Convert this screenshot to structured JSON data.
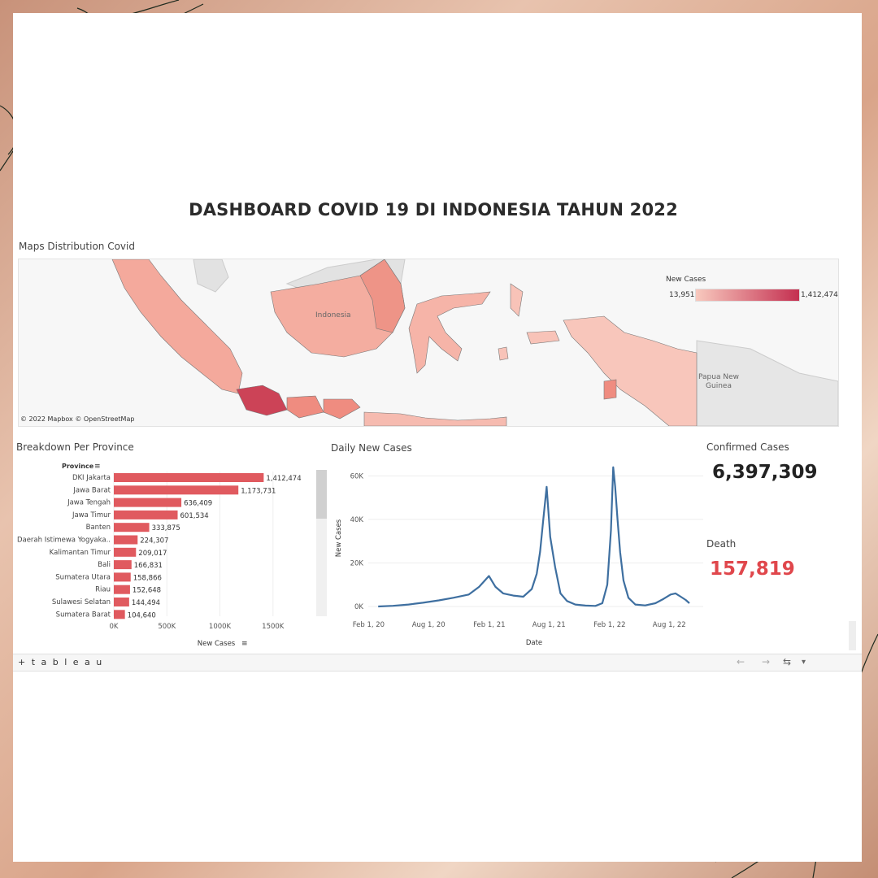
{
  "dashboard": {
    "title": "DASHBOARD COVID 19 DI INDONESIA TAHUN 2022"
  },
  "map": {
    "section_label": "Maps Distribution Covid",
    "legend_title": "New Cases",
    "legend_min": "13,951",
    "legend_max": "1,412,474",
    "attribution": "© 2022 Mapbox  © OpenStreetMap",
    "place_country": "Indonesia",
    "place_png": "Papua New Guinea",
    "colors": {
      "low": "#f8c9be",
      "high": "#c42f50"
    }
  },
  "province_chart": {
    "section_label": "Breakdown Per Province",
    "header_label": "Province",
    "xlabel_text": "New Cases",
    "bar_color": "#e05a5f"
  },
  "daily_chart": {
    "section_label": "Daily New Cases",
    "line_color": "#3e6fa0"
  },
  "kpi": {
    "confirmed_label": "Confirmed Cases",
    "confirmed_value": "6,397,309",
    "death_label": "Death",
    "death_value": "157,819",
    "death_color": "#e0474c"
  },
  "toolbar": {
    "logo": "+ t a b l e a u",
    "back": "←",
    "forward": "→",
    "share": "⇆",
    "more": "▾"
  },
  "chart_data": [
    {
      "type": "bar",
      "orientation": "horizontal",
      "title": "Breakdown Per Province",
      "ylabel": "Province",
      "xlabel": "New Cases",
      "categories": [
        "DKI Jakarta",
        "Jawa Barat",
        "Jawa Tengah",
        "Jawa Timur",
        "Banten",
        "Daerah Istimewa Yogyaka..",
        "Kalimantan Timur",
        "Bali",
        "Sumatera Utara",
        "Riau",
        "Sulawesi Selatan",
        "Sumatera Barat"
      ],
      "value_labels": [
        "1,412,474",
        "1,173,731",
        "636,409",
        "601,534",
        "333,875",
        "224,307",
        "209,017",
        "166,831",
        "158,866",
        "152,648",
        "144,494",
        "104,640"
      ],
      "values": [
        1412474,
        1173731,
        636409,
        601534,
        333875,
        224307,
        209017,
        166831,
        158866,
        152648,
        144494,
        104640
      ],
      "xlim": [
        0,
        1900000
      ],
      "xticks": [
        0,
        500000,
        1000000,
        1500000
      ],
      "xtick_labels": [
        "0K",
        "500K",
        "1000K",
        "1500K"
      ],
      "grid": true
    },
    {
      "type": "line",
      "title": "Daily New Cases",
      "xlabel": "Date",
      "ylabel": "New Cases",
      "x_range": [
        "2020-03-01",
        "2022-10-01"
      ],
      "xtick_labels": [
        "Feb 1, 20",
        "Aug 1, 20",
        "Feb 1, 21",
        "Aug 1, 21",
        "Feb 1, 22",
        "Aug 1, 22"
      ],
      "xtick_dates": [
        "2020-02-01",
        "2020-08-01",
        "2021-02-01",
        "2021-08-01",
        "2022-02-01",
        "2022-08-01"
      ],
      "ylim": [
        0,
        65000
      ],
      "yticks": [
        0,
        20000,
        40000,
        60000
      ],
      "ytick_labels": [
        "0K",
        "20K",
        "40K",
        "60K"
      ],
      "series": [
        {
          "x": [
            "2020-03-01",
            "2020-04-15",
            "2020-06-01",
            "2020-07-15",
            "2020-09-01",
            "2020-10-15",
            "2020-12-01",
            "2021-01-01",
            "2021-01-31",
            "2021-02-20",
            "2021-03-15",
            "2021-04-15",
            "2021-05-15",
            "2021-06-10",
            "2021-06-25",
            "2021-07-05",
            "2021-07-15",
            "2021-07-25",
            "2021-08-05",
            "2021-08-20",
            "2021-09-05",
            "2021-09-25",
            "2021-10-20",
            "2021-11-20",
            "2021-12-20",
            "2022-01-10",
            "2022-01-25",
            "2022-02-05",
            "2022-02-12",
            "2022-02-18",
            "2022-02-25",
            "2022-03-05",
            "2022-03-15",
            "2022-03-30",
            "2022-04-20",
            "2022-05-20",
            "2022-06-20",
            "2022-07-15",
            "2022-08-05",
            "2022-08-20",
            "2022-09-05",
            "2022-09-20",
            "2022-10-01"
          ],
          "y": [
            0,
            300,
            900,
            1700,
            2800,
            4000,
            5500,
            9000,
            14000,
            9000,
            6000,
            5000,
            4500,
            8000,
            15000,
            25000,
            40000,
            55000,
            32000,
            18000,
            6000,
            2500,
            900,
            400,
            250,
            1500,
            10000,
            35000,
            64000,
            55000,
            40000,
            25000,
            12000,
            4000,
            900,
            500,
            1500,
            3500,
            5500,
            6000,
            4500,
            3000,
            1500
          ]
        }
      ]
    }
  ]
}
